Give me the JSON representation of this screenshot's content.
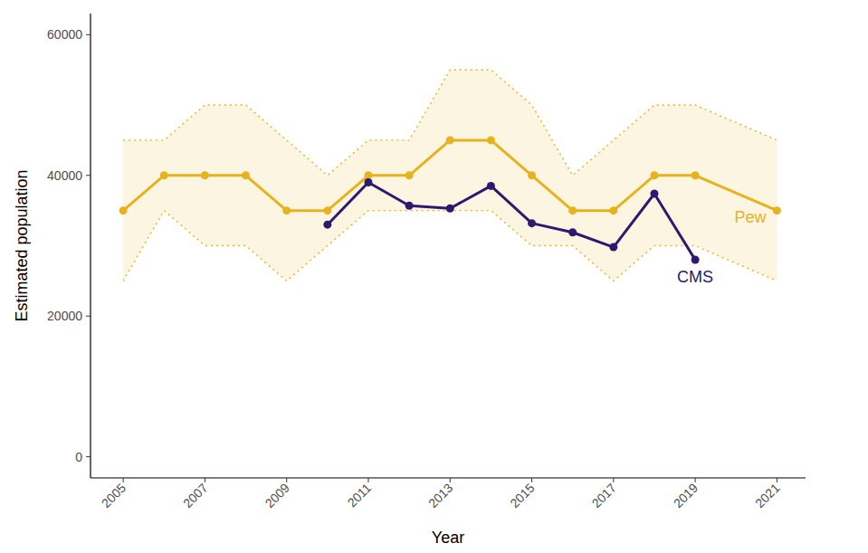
{
  "chart_data": {
    "type": "line",
    "x_label": "Year",
    "y_label": "Estimated population",
    "xlim": [
      2004.2,
      2021.7
    ],
    "xticks": [
      2005,
      2007,
      2009,
      2011,
      2013,
      2015,
      2017,
      2019,
      2021
    ],
    "ylim": [
      -3000,
      63000
    ],
    "yticks": [
      0,
      20000,
      40000,
      60000
    ],
    "grid": false,
    "series": [
      {
        "name": "Pew",
        "color": "#e6b31e",
        "marker": "circle",
        "line_style": "solid",
        "x": [
          2005,
          2006,
          2007,
          2008,
          2009,
          2010,
          2011,
          2012,
          2013,
          2014,
          2015,
          2016,
          2017,
          2018,
          2019,
          2021
        ],
        "values": [
          35000,
          40000,
          40000,
          40000,
          35000,
          35000,
          40000,
          40000,
          45000,
          45000,
          40000,
          35000,
          35000,
          40000,
          40000,
          35000
        ],
        "lower": [
          25000,
          35000,
          30000,
          30000,
          25000,
          30000,
          35000,
          35000,
          35000,
          35000,
          30000,
          30000,
          25000,
          30000,
          30000,
          25000
        ],
        "upper": [
          45000,
          45000,
          50000,
          50000,
          45000,
          40000,
          45000,
          45000,
          55000,
          55000,
          50000,
          40000,
          45000,
          50000,
          50000,
          45000
        ]
      },
      {
        "name": "CMS",
        "color": "#2d1a6e",
        "marker": "circle",
        "line_style": "solid",
        "x": [
          2010,
          2011,
          2012,
          2013,
          2014,
          2015,
          2016,
          2017,
          2018,
          2019
        ],
        "values": [
          33000,
          39000,
          35700,
          35300,
          38500,
          33200,
          31900,
          29800,
          37400,
          28000
        ]
      }
    ]
  }
}
